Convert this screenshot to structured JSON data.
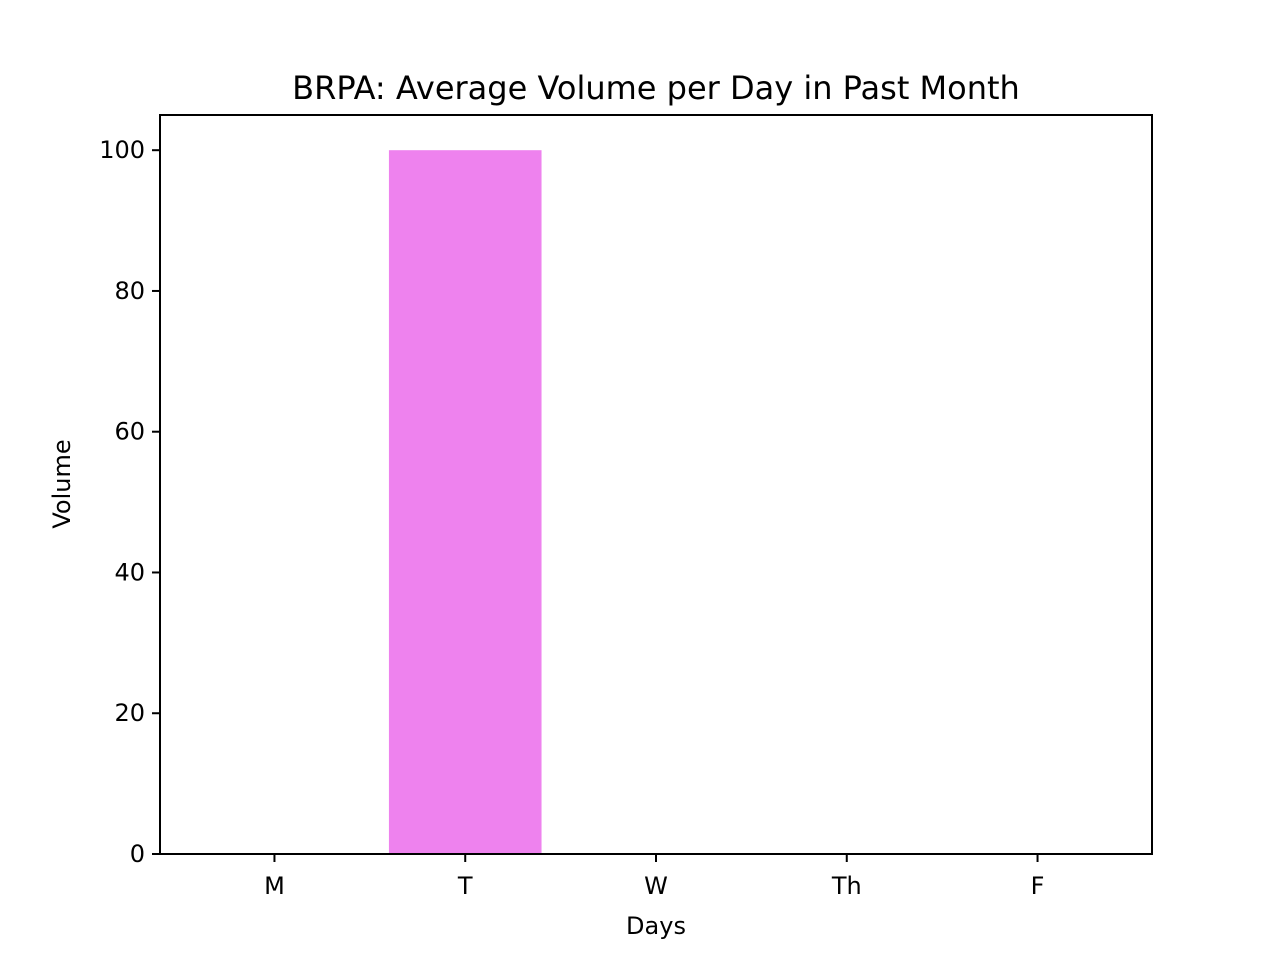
{
  "chart_data": {
    "type": "bar",
    "title": "BRPA: Average Volume per Day in Past Month",
    "xlabel": "Days",
    "ylabel": "Volume",
    "categories": [
      "M",
      "T",
      "W",
      "Th",
      "F"
    ],
    "values": [
      0,
      100,
      0,
      0,
      0
    ],
    "ylim": [
      0,
      105
    ],
    "yticks": [
      "0",
      "20",
      "40",
      "60",
      "80",
      "100"
    ],
    "bar_color": "#ee82ee",
    "grid": false,
    "legend": "none"
  }
}
